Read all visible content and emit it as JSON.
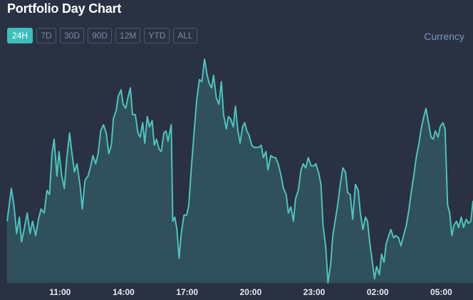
{
  "title": "Portfolio Day Chart",
  "range_buttons": [
    {
      "label": "24H",
      "active": true
    },
    {
      "label": "7D",
      "active": false
    },
    {
      "label": "30D",
      "active": false
    },
    {
      "label": "90D",
      "active": false
    },
    {
      "label": "12M",
      "active": false
    },
    {
      "label": "YTD",
      "active": false
    },
    {
      "label": "ALL",
      "active": false
    }
  ],
  "currency_label": "Currency",
  "colors": {
    "background": "#2a3142",
    "accent": "#3ebfbd",
    "line": "#4cc4be",
    "area_fill": "#30505b"
  },
  "chart_data": {
    "type": "area",
    "title": "",
    "xlabel": "",
    "ylabel": "",
    "x_ticks": [
      "11:00",
      "14:00",
      "17:00",
      "20:00",
      "23:00",
      "02:00",
      "05:00"
    ],
    "x_tick_hours": [
      11,
      14,
      17,
      20,
      23,
      26,
      29
    ],
    "x_range_hours": [
      8.5,
      30.5
    ],
    "y_axis_visible": false,
    "grid": false,
    "ylim": [
      0,
      100
    ],
    "series": [
      {
        "values": [
          [
            8.5,
            30
          ],
          [
            8.6,
            38
          ],
          [
            8.7,
            46
          ],
          [
            8.82,
            38
          ],
          [
            8.95,
            24
          ],
          [
            9.08,
            32
          ],
          [
            9.18,
            20
          ],
          [
            9.3,
            26
          ],
          [
            9.45,
            34
          ],
          [
            9.58,
            24
          ],
          [
            9.7,
            30
          ],
          [
            9.85,
            23
          ],
          [
            9.98,
            31
          ],
          [
            10.1,
            36
          ],
          [
            10.25,
            34
          ],
          [
            10.38,
            45
          ],
          [
            10.5,
            43
          ],
          [
            10.62,
            63
          ],
          [
            10.72,
            70
          ],
          [
            10.85,
            52
          ],
          [
            10.95,
            64
          ],
          [
            11.08,
            52
          ],
          [
            11.2,
            46
          ],
          [
            11.32,
            61
          ],
          [
            11.45,
            73
          ],
          [
            11.55,
            64
          ],
          [
            11.68,
            54
          ],
          [
            11.8,
            58
          ],
          [
            11.95,
            47
          ],
          [
            12.05,
            36
          ],
          [
            12.18,
            50
          ],
          [
            12.32,
            52
          ],
          [
            12.45,
            57
          ],
          [
            12.55,
            62
          ],
          [
            12.68,
            58
          ],
          [
            12.8,
            63
          ],
          [
            12.92,
            74
          ],
          [
            13.05,
            77
          ],
          [
            13.18,
            73
          ],
          [
            13.3,
            63
          ],
          [
            13.42,
            67
          ],
          [
            13.52,
            80
          ],
          [
            13.65,
            84
          ],
          [
            13.75,
            91
          ],
          [
            13.88,
            94
          ],
          [
            13.98,
            87
          ],
          [
            14.1,
            85
          ],
          [
            14.2,
            90
          ],
          [
            14.32,
            95
          ],
          [
            14.42,
            82
          ],
          [
            14.55,
            82
          ],
          [
            14.68,
            73
          ],
          [
            14.78,
            71
          ],
          [
            14.9,
            78
          ],
          [
            15.0,
            68
          ],
          [
            15.12,
            81
          ],
          [
            15.22,
            76
          ],
          [
            15.35,
            79
          ],
          [
            15.45,
            67
          ],
          [
            15.55,
            70
          ],
          [
            15.68,
            65
          ],
          [
            15.78,
            64
          ],
          [
            15.9,
            73
          ],
          [
            16.0,
            74
          ],
          [
            16.1,
            69
          ],
          [
            16.25,
            77
          ],
          [
            16.32,
            30
          ],
          [
            16.42,
            32
          ],
          [
            16.52,
            26
          ],
          [
            16.62,
            12
          ],
          [
            16.72,
            24
          ],
          [
            16.85,
            33
          ],
          [
            16.98,
            33
          ],
          [
            17.08,
            38
          ],
          [
            17.2,
            56
          ],
          [
            17.32,
            72
          ],
          [
            17.45,
            89
          ],
          [
            17.58,
            99
          ],
          [
            17.7,
            98
          ],
          [
            17.82,
            109
          ],
          [
            17.95,
            101
          ],
          [
            18.05,
            97
          ],
          [
            18.15,
            95
          ],
          [
            18.25,
            101
          ],
          [
            18.38,
            90
          ],
          [
            18.5,
            87
          ],
          [
            18.62,
            98
          ],
          [
            18.72,
            82
          ],
          [
            18.85,
            75
          ],
          [
            18.95,
            81
          ],
          [
            19.05,
            80
          ],
          [
            19.18,
            76
          ],
          [
            19.28,
            86
          ],
          [
            19.4,
            74
          ],
          [
            19.5,
            68
          ],
          [
            19.62,
            76
          ],
          [
            19.72,
            78
          ],
          [
            19.82,
            74
          ],
          [
            19.92,
            72
          ],
          [
            20.05,
            67
          ],
          [
            20.15,
            66
          ],
          [
            20.28,
            66
          ],
          [
            20.38,
            66
          ],
          [
            20.5,
            67
          ],
          [
            20.6,
            61
          ],
          [
            20.72,
            64
          ],
          [
            20.82,
            55
          ],
          [
            20.95,
            62
          ],
          [
            21.08,
            61
          ],
          [
            21.18,
            61
          ],
          [
            21.3,
            58
          ],
          [
            21.42,
            53
          ],
          [
            21.55,
            46
          ],
          [
            21.68,
            43
          ],
          [
            21.78,
            34
          ],
          [
            21.9,
            37
          ],
          [
            22.02,
            30
          ],
          [
            22.12,
            41
          ],
          [
            22.25,
            45
          ],
          [
            22.38,
            55
          ],
          [
            22.48,
            58
          ],
          [
            22.6,
            56
          ],
          [
            22.72,
            61
          ],
          [
            22.85,
            57
          ],
          [
            22.98,
            57
          ],
          [
            23.08,
            58
          ],
          [
            23.2,
            54
          ],
          [
            23.32,
            48
          ],
          [
            23.42,
            28
          ],
          [
            23.55,
            17
          ],
          [
            23.65,
            0
          ],
          [
            23.78,
            9
          ],
          [
            23.88,
            23
          ],
          [
            24.0,
            31
          ],
          [
            24.1,
            37
          ],
          [
            24.22,
            47
          ],
          [
            24.35,
            56
          ],
          [
            24.48,
            54
          ],
          [
            24.58,
            44
          ],
          [
            24.7,
            43
          ],
          [
            24.82,
            31
          ],
          [
            24.95,
            48
          ],
          [
            25.08,
            45
          ],
          [
            25.18,
            34
          ],
          [
            25.3,
            26
          ],
          [
            25.42,
            32
          ],
          [
            25.52,
            30
          ],
          [
            25.62,
            20
          ],
          [
            25.75,
            10
          ],
          [
            25.85,
            2
          ],
          [
            25.95,
            8
          ],
          [
            26.08,
            4
          ],
          [
            26.18,
            14
          ],
          [
            26.3,
            10
          ],
          [
            26.4,
            19
          ],
          [
            26.52,
            23
          ],
          [
            26.62,
            26
          ],
          [
            26.75,
            22
          ],
          [
            26.85,
            23
          ],
          [
            26.98,
            22
          ],
          [
            27.1,
            18
          ],
          [
            27.22,
            23
          ],
          [
            27.35,
            28
          ],
          [
            27.48,
            36
          ],
          [
            27.58,
            44
          ],
          [
            27.7,
            52
          ],
          [
            27.82,
            61
          ],
          [
            27.95,
            68
          ],
          [
            28.05,
            75
          ],
          [
            28.18,
            81
          ],
          [
            28.28,
            85
          ],
          [
            28.4,
            78
          ],
          [
            28.52,
            71
          ],
          [
            28.62,
            70
          ],
          [
            28.72,
            74
          ],
          [
            28.85,
            71
          ],
          [
            28.95,
            76
          ],
          [
            29.08,
            78
          ],
          [
            29.18,
            75
          ],
          [
            29.3,
            38
          ],
          [
            29.4,
            34
          ],
          [
            29.5,
            23
          ],
          [
            29.6,
            28
          ],
          [
            29.72,
            30
          ],
          [
            29.82,
            27
          ],
          [
            29.95,
            32
          ],
          [
            30.05,
            27
          ],
          [
            30.18,
            31
          ],
          [
            30.28,
            29
          ],
          [
            30.4,
            30
          ],
          [
            30.5,
            40
          ]
        ]
      }
    ]
  }
}
